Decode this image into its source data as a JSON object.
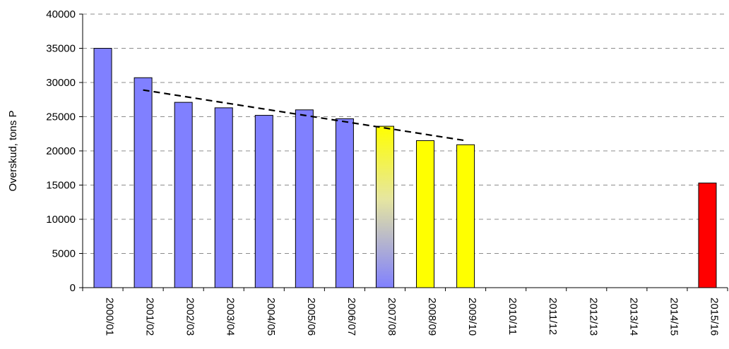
{
  "chart_data": {
    "type": "bar",
    "ylabel": "Overskud, tons P",
    "xlabel": "",
    "title": "",
    "ylim": [
      0,
      40000
    ],
    "yticks": [
      0,
      5000,
      10000,
      15000,
      20000,
      25000,
      30000,
      35000,
      40000
    ],
    "grid": "horizontal dashed",
    "categories": [
      "2000/01",
      "2001/02",
      "2002/03",
      "2003/04",
      "2004/05",
      "2005/06",
      "2006/07",
      "2007/08",
      "2008/09",
      "2009/10",
      "2010/11",
      "2011/12",
      "2012/13",
      "2013/14",
      "2014/15",
      "2015/16"
    ],
    "values": [
      35000,
      30700,
      27100,
      26300,
      25200,
      26000,
      24700,
      23600,
      21500,
      20900,
      null,
      null,
      null,
      null,
      null,
      15300
    ],
    "bar_colors": [
      "#8080ff",
      "#8080ff",
      "#8080ff",
      "#8080ff",
      "#8080ff",
      "#8080ff",
      "#8080ff",
      "gradient-yellow-blue",
      "#ffff00",
      "#ffff00",
      null,
      null,
      null,
      null,
      null,
      "#ff0000"
    ],
    "trendline": {
      "style": "dashed",
      "color": "#000000",
      "from": {
        "category": "2001/02",
        "y": 28900
      },
      "to": {
        "category": "2009/10",
        "y": 21500
      }
    }
  }
}
